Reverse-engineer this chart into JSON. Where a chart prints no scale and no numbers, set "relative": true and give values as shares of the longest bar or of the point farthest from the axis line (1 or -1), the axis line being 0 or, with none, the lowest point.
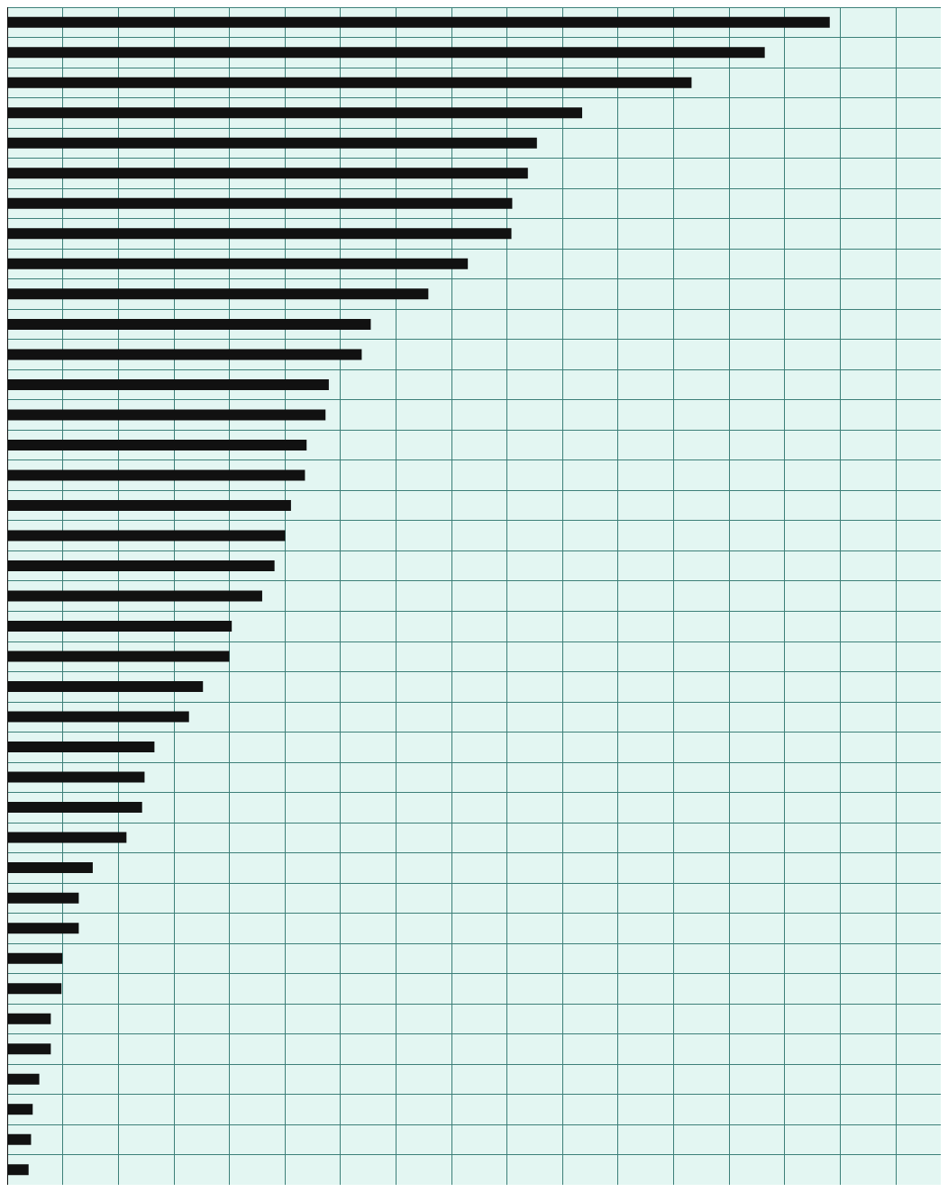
{
  "chart_data": {
    "type": "bar",
    "orientation": "horizontal",
    "relative": true,
    "grid": true,
    "color": "#111111",
    "categories": [
      null,
      null,
      null,
      null,
      null,
      null,
      null,
      null,
      null,
      null,
      null,
      null,
      null,
      null,
      null,
      null,
      null,
      null,
      null,
      null,
      null,
      null,
      null,
      null,
      null,
      null,
      null,
      null,
      null,
      null,
      null,
      null,
      null,
      null,
      null,
      null,
      null,
      null,
      null
    ],
    "values": [
      1,
      0.921,
      0.832,
      0.699,
      0.644,
      0.633,
      0.614,
      0.613,
      0.56,
      0.512,
      0.442,
      0.431,
      0.391,
      0.387,
      0.364,
      0.362,
      0.345,
      0.338,
      0.325,
      0.31,
      0.273,
      0.27,
      0.238,
      0.221,
      0.179,
      0.167,
      0.164,
      0.145,
      0.104,
      0.087,
      0.087,
      0.067,
      0.066,
      0.053,
      0.053,
      0.039,
      0.031,
      0.029,
      0.026
    ]
  }
}
